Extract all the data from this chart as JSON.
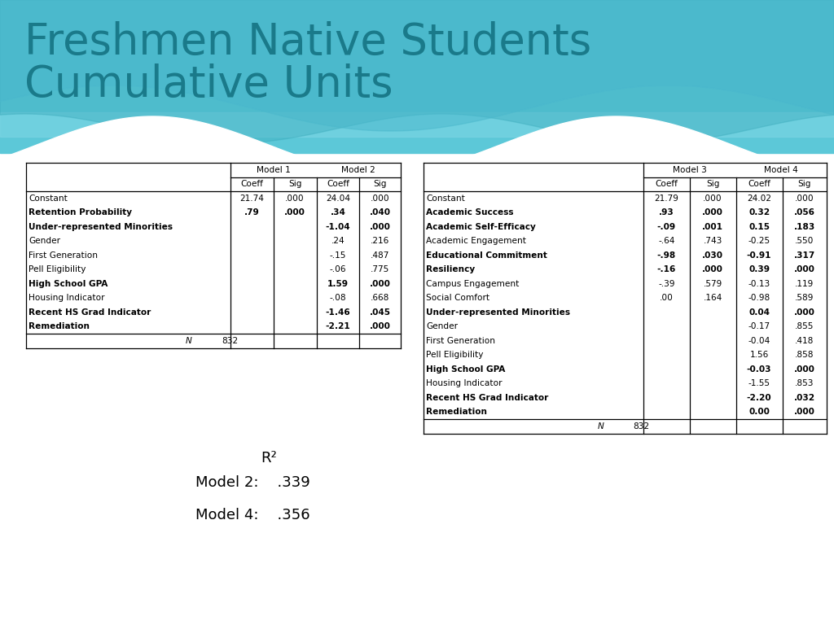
{
  "title_line1": "Freshmen Native Students",
  "title_line2": "Cumulative Units",
  "title_color": "#1a7a8a",
  "bg_color": "#f2f2f2",
  "table1": {
    "rows": [
      {
        "label": "Constant",
        "bold": false,
        "m1_coeff": "21.74",
        "m1_sig": ".000",
        "m2_coeff": "24.04",
        "m2_sig": ".000"
      },
      {
        "label": "Retention Probability",
        "bold": true,
        "m1_coeff": ".79",
        "m1_sig": ".000",
        "m2_coeff": ".34",
        "m2_sig": ".040"
      },
      {
        "label": "Under-represented Minorities",
        "bold": true,
        "m1_coeff": "",
        "m1_sig": "",
        "m2_coeff": "-1.04",
        "m2_sig": ".000"
      },
      {
        "label": "Gender",
        "bold": false,
        "m1_coeff": "",
        "m1_sig": "",
        "m2_coeff": ".24",
        "m2_sig": ".216"
      },
      {
        "label": "First Generation",
        "bold": false,
        "m1_coeff": "",
        "m1_sig": "",
        "m2_coeff": "-.15",
        "m2_sig": ".487"
      },
      {
        "label": "Pell Eligibility",
        "bold": false,
        "m1_coeff": "",
        "m1_sig": "",
        "m2_coeff": "-.06",
        "m2_sig": ".775"
      },
      {
        "label": "High School GPA",
        "bold": true,
        "m1_coeff": "",
        "m1_sig": "",
        "m2_coeff": "1.59",
        "m2_sig": ".000"
      },
      {
        "label": "Housing Indicator",
        "bold": false,
        "m1_coeff": "",
        "m1_sig": "",
        "m2_coeff": "-.08",
        "m2_sig": ".668"
      },
      {
        "label": "Recent HS Grad Indicator",
        "bold": true,
        "m1_coeff": "",
        "m1_sig": "",
        "m2_coeff": "-1.46",
        "m2_sig": ".045"
      },
      {
        "label": "Remediation",
        "bold": true,
        "m1_coeff": "",
        "m1_sig": "",
        "m2_coeff": "-2.21",
        "m2_sig": ".000"
      }
    ],
    "N": "832"
  },
  "table2": {
    "rows": [
      {
        "label": "Constant",
        "bold": false,
        "m3_coeff": "21.79",
        "m3_sig": ".000",
        "m4_coeff": "24.02",
        "m4_sig": ".000"
      },
      {
        "label": "Academic Success",
        "bold": true,
        "m3_coeff": ".93",
        "m3_sig": ".000",
        "m4_coeff": "0.32",
        "m4_sig": ".056"
      },
      {
        "label": "Academic Self-Efficacy",
        "bold": true,
        "m3_coeff": "-.09",
        "m3_sig": ".001",
        "m4_coeff": "0.15",
        "m4_sig": ".183"
      },
      {
        "label": "Academic Engagement",
        "bold": false,
        "m3_coeff": "-.64",
        "m3_sig": ".743",
        "m4_coeff": "-0.25",
        "m4_sig": ".550"
      },
      {
        "label": "Educational Commitment",
        "bold": true,
        "m3_coeff": "-.98",
        "m3_sig": ".030",
        "m4_coeff": "-0.91",
        "m4_sig": ".317"
      },
      {
        "label": "Resiliency",
        "bold": true,
        "m3_coeff": "-.16",
        "m3_sig": ".000",
        "m4_coeff": "0.39",
        "m4_sig": ".000"
      },
      {
        "label": "Campus Engagement",
        "bold": false,
        "m3_coeff": "-.39",
        "m3_sig": ".579",
        "m4_coeff": "-0.13",
        "m4_sig": ".119"
      },
      {
        "label": "Social Comfort",
        "bold": false,
        "m3_coeff": ".00",
        "m3_sig": ".164",
        "m4_coeff": "-0.98",
        "m4_sig": ".589"
      },
      {
        "label": "Under-represented Minorities",
        "bold": true,
        "m3_coeff": "",
        "m3_sig": "",
        "m4_coeff": "0.04",
        "m4_sig": ".000"
      },
      {
        "label": "Gender",
        "bold": false,
        "m3_coeff": "",
        "m3_sig": "",
        "m4_coeff": "-0.17",
        "m4_sig": ".855"
      },
      {
        "label": "First Generation",
        "bold": false,
        "m3_coeff": "",
        "m3_sig": "",
        "m4_coeff": "-0.04",
        "m4_sig": ".418"
      },
      {
        "label": "Pell Eligibility",
        "bold": false,
        "m3_coeff": "",
        "m3_sig": "",
        "m4_coeff": "1.56",
        "m4_sig": ".858"
      },
      {
        "label": "High School GPA",
        "bold": true,
        "m3_coeff": "",
        "m3_sig": "",
        "m4_coeff": "-0.03",
        "m4_sig": ".000"
      },
      {
        "label": "Housing Indicator",
        "bold": false,
        "m3_coeff": "",
        "m3_sig": "",
        "m4_coeff": "-1.55",
        "m4_sig": ".853"
      },
      {
        "label": "Recent HS Grad Indicator",
        "bold": true,
        "m3_coeff": "",
        "m3_sig": "",
        "m4_coeff": "-2.20",
        "m4_sig": ".032"
      },
      {
        "label": "Remediation",
        "bold": true,
        "m3_coeff": "",
        "m3_sig": "",
        "m4_coeff": "0.00",
        "m4_sig": ".000"
      }
    ],
    "N": "832"
  },
  "r2_model2": "Model 2:    .339",
  "r2_model4": "Model 4:    .356"
}
